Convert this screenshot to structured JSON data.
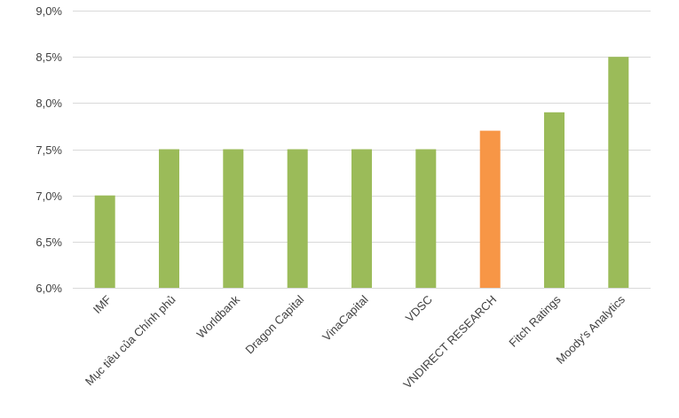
{
  "chart_data": {
    "type": "bar",
    "title": "",
    "xlabel": "",
    "ylabel": "",
    "categories": [
      "IMF",
      "Mục tiêu của Chính phủ",
      "Worldbank",
      "Dragon Capital",
      "VinaCapital",
      "VDSC",
      "VNDIRECT RESEARCH",
      "Fitch Ratings",
      "Moody's Analytics"
    ],
    "values": [
      7.0,
      7.5,
      7.5,
      7.5,
      7.5,
      7.5,
      7.7,
      7.9,
      8.5
    ],
    "colors": [
      "#9bbb59",
      "#9bbb59",
      "#9bbb59",
      "#9bbb59",
      "#9bbb59",
      "#9bbb59",
      "#f79646",
      "#9bbb59",
      "#9bbb59"
    ],
    "ylim": [
      6.0,
      9.0
    ],
    "yticks": [
      6.0,
      6.5,
      7.0,
      7.5,
      8.0,
      8.5,
      9.0
    ],
    "ytick_labels": [
      "6,0%",
      "6,5%",
      "7,0%",
      "7,5%",
      "8,0%",
      "8,5%",
      "9,0%"
    ],
    "grid": true,
    "legend": "none",
    "gridline_color": "#d9d9d9"
  }
}
